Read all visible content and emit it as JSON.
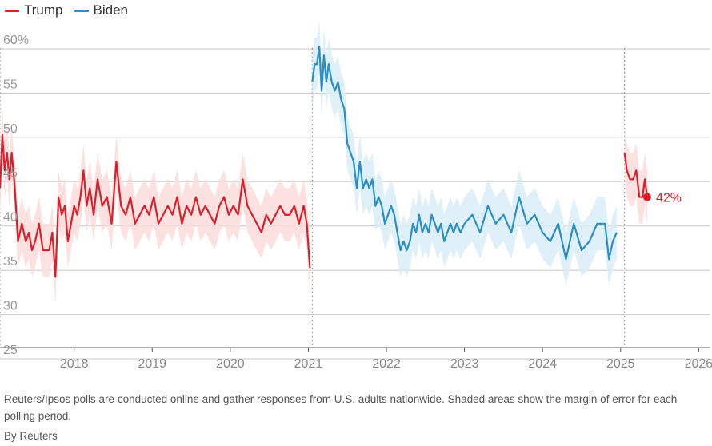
{
  "legend": [
    {
      "label": "Trump",
      "color": "#d9202b"
    },
    {
      "label": "Biden",
      "color": "#2a8fc4"
    }
  ],
  "footer": {
    "note": "Reuters/Ipsos polls are conducted online and gather responses from U.S. adults nationwide. Shaded areas show the margin of error for each polling period.",
    "byline": "By Reuters"
  },
  "chart_data": {
    "type": "line",
    "ylim": [
      25,
      60
    ],
    "xlim": [
      2017.05,
      2026.15
    ],
    "y_ticks": [
      {
        "value": 60,
        "label": "60%"
      },
      {
        "value": 55,
        "label": "55"
      },
      {
        "value": 50,
        "label": "50"
      },
      {
        "value": 45,
        "label": "45"
      },
      {
        "value": 40,
        "label": "40"
      },
      {
        "value": 35,
        "label": "35"
      },
      {
        "value": 30,
        "label": "30"
      },
      {
        "value": 25,
        "label": "25"
      }
    ],
    "x_ticks": [
      {
        "value": 2018,
        "label": "2018"
      },
      {
        "value": 2019,
        "label": "2019"
      },
      {
        "value": 2020,
        "label": "2020"
      },
      {
        "value": 2021,
        "label": "2021"
      },
      {
        "value": 2022,
        "label": "2022"
      },
      {
        "value": 2023,
        "label": "2023"
      },
      {
        "value": 2024,
        "label": "2024"
      },
      {
        "value": 2025,
        "label": "2025"
      },
      {
        "value": 2026,
        "label": "2026"
      }
    ],
    "term_starts": [
      2017.05,
      2021.05,
      2025.05
    ],
    "grid": true,
    "legend_position": "top-left",
    "series": [
      {
        "name": "Trump",
        "color": "#d9202b",
        "band_color": "#fbdcdc",
        "margin": 3,
        "x": [
          2017.05,
          2017.08,
          2017.11,
          2017.14,
          2017.17,
          2017.2,
          2017.24,
          2017.28,
          2017.33,
          2017.38,
          2017.42,
          2017.46,
          2017.5,
          2017.55,
          2017.6,
          2017.64,
          2017.68,
          2017.72,
          2017.76,
          2017.8,
          2017.84,
          2017.88,
          2017.92,
          2017.96,
          2018.0,
          2018.04,
          2018.08,
          2018.12,
          2018.16,
          2018.2,
          2018.25,
          2018.3,
          2018.36,
          2018.42,
          2018.48,
          2018.54,
          2018.6,
          2018.66,
          2018.72,
          2018.78,
          2018.84,
          2018.9,
          2018.96,
          2019.02,
          2019.08,
          2019.14,
          2019.2,
          2019.26,
          2019.32,
          2019.38,
          2019.44,
          2019.5,
          2019.56,
          2019.62,
          2019.68,
          2019.74,
          2019.8,
          2019.86,
          2019.92,
          2019.98,
          2020.04,
          2020.1,
          2020.16,
          2020.22,
          2020.28,
          2020.34,
          2020.4,
          2020.46,
          2020.52,
          2020.58,
          2020.64,
          2020.7,
          2020.76,
          2020.82,
          2020.88,
          2020.94,
          2020.98,
          2021.02
        ],
        "y": [
          43,
          49,
          45,
          47,
          44,
          47,
          43,
          37,
          39,
          37,
          38,
          36,
          37,
          39,
          36,
          36,
          36,
          38,
          33,
          42,
          40,
          41,
          37,
          39,
          41,
          40,
          42,
          45,
          41,
          43,
          40,
          44,
          41,
          42,
          39,
          46,
          41,
          40,
          42,
          39,
          40,
          41,
          40,
          42,
          39,
          40,
          41,
          40,
          42,
          39,
          41,
          40,
          42,
          40,
          41,
          40,
          39,
          41,
          42,
          40,
          41,
          40,
          44,
          41,
          40,
          39,
          38,
          40,
          39,
          40,
          41,
          40,
          40,
          41,
          39,
          41,
          39,
          34
        ]
      },
      {
        "name": "Biden",
        "color": "#2a8fc4",
        "band_color": "#daedf8",
        "margin": 3,
        "x": [
          2021.05,
          2021.08,
          2021.11,
          2021.14,
          2021.17,
          2021.2,
          2021.23,
          2021.26,
          2021.3,
          2021.34,
          2021.38,
          2021.42,
          2021.46,
          2021.5,
          2021.54,
          2021.58,
          2021.62,
          2021.66,
          2021.7,
          2021.74,
          2021.78,
          2021.82,
          2021.86,
          2021.9,
          2021.94,
          2021.98,
          2022.02,
          2022.06,
          2022.1,
          2022.14,
          2022.18,
          2022.22,
          2022.26,
          2022.3,
          2022.34,
          2022.38,
          2022.42,
          2022.46,
          2022.5,
          2022.54,
          2022.58,
          2022.62,
          2022.66,
          2022.7,
          2022.74,
          2022.78,
          2022.82,
          2022.86,
          2022.9,
          2022.95,
          2023.0,
          2023.1,
          2023.2,
          2023.3,
          2023.4,
          2023.5,
          2023.6,
          2023.7,
          2023.8,
          2023.9,
          2024.0,
          2024.1,
          2024.2,
          2024.3,
          2024.4,
          2024.5,
          2024.6,
          2024.7,
          2024.8,
          2024.85,
          2024.9,
          2024.95
        ],
        "y": [
          55,
          57,
          57,
          59,
          54,
          58,
          55,
          57,
          55,
          54,
          55,
          53,
          52,
          48,
          47,
          46,
          43,
          46,
          43,
          44,
          43,
          44,
          41,
          42,
          41,
          39,
          40,
          41,
          40,
          38,
          36,
          37,
          36,
          37,
          39,
          38,
          40,
          38,
          39,
          38,
          40,
          39,
          38,
          39,
          37,
          38,
          39,
          38,
          39,
          38,
          39,
          40,
          38,
          41,
          39,
          40,
          38,
          42,
          39,
          40,
          38,
          37,
          39,
          35,
          39,
          36,
          37,
          39,
          39,
          35,
          37,
          38
        ]
      },
      {
        "name": "Trump",
        "color": "#d9202b",
        "band_color": "#fbdcdc",
        "margin": 3,
        "x": [
          2025.05,
          2025.08,
          2025.12,
          2025.16,
          2025.2,
          2025.24,
          2025.28,
          2025.31,
          2025.34
        ],
        "y": [
          47,
          45,
          44,
          44,
          45,
          42,
          42,
          44,
          42
        ]
      }
    ],
    "annotations": [
      {
        "text": "42%",
        "x": 2025.34,
        "y": 42,
        "color": "#d9202b"
      }
    ]
  }
}
